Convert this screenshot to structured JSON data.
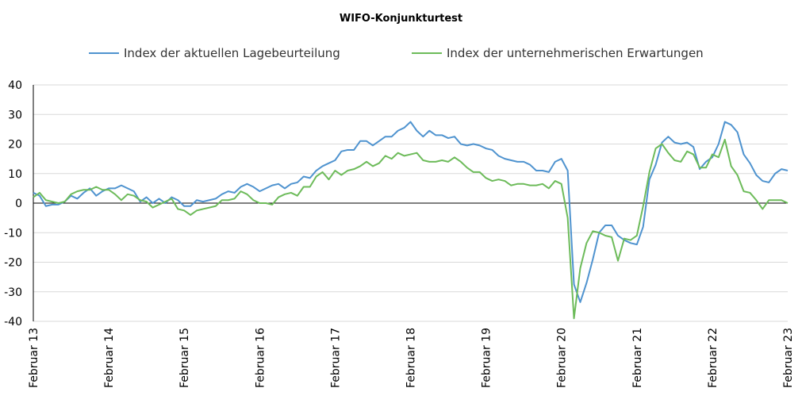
{
  "chart_data": {
    "type": "line",
    "title": "WIFO-Konjunkturtest",
    "xlabel": "",
    "ylabel": "",
    "ylim": [
      -40,
      40
    ],
    "yticks": [
      40,
      30,
      20,
      10,
      0,
      -10,
      -20,
      -30,
      -40
    ],
    "x_tick_labels": [
      "Februar 13",
      "Februar 14",
      "Februar 15",
      "Februar 16",
      "Februar 17",
      "Februar 18",
      "Februar 19",
      "Februar 20",
      "Februar 21",
      "Februar 22",
      "Februar 23"
    ],
    "grid": "horizontal",
    "legend_position": "top",
    "x_start": "2013-02",
    "x_end": "2023-02",
    "series": [
      {
        "name": "Index der aktuellen Lagebeurteilung",
        "color": "#4f93cf",
        "points": [
          [
            "2013-02",
            3.5
          ],
          [
            "2013-03",
            2.5
          ],
          [
            "2013-04",
            -1.0
          ],
          [
            "2013-05",
            -0.5
          ],
          [
            "2013-06",
            -0.5
          ],
          [
            "2013-07",
            0.5
          ],
          [
            "2013-08",
            2.5
          ],
          [
            "2013-09",
            1.5
          ],
          [
            "2013-10",
            3.5
          ],
          [
            "2013-11",
            5.0
          ],
          [
            "2013-12",
            2.5
          ],
          [
            "2014-01",
            4.0
          ],
          [
            "2014-02",
            5.0
          ],
          [
            "2014-03",
            5.0
          ],
          [
            "2014-04",
            6.0
          ],
          [
            "2014-05",
            5.0
          ],
          [
            "2014-06",
            4.0
          ],
          [
            "2014-07",
            0.5
          ],
          [
            "2014-08",
            2.0
          ],
          [
            "2014-09",
            0.0
          ],
          [
            "2014-10",
            1.5
          ],
          [
            "2014-11",
            0.0
          ],
          [
            "2014-12",
            2.0
          ],
          [
            "2015-01",
            1.0
          ],
          [
            "2015-02",
            -1.0
          ],
          [
            "2015-03",
            -1.0
          ],
          [
            "2015-04",
            1.0
          ],
          [
            "2015-05",
            0.5
          ],
          [
            "2015-06",
            1.0
          ],
          [
            "2015-07",
            1.5
          ],
          [
            "2015-08",
            3.0
          ],
          [
            "2015-09",
            4.0
          ],
          [
            "2015-10",
            3.5
          ],
          [
            "2015-11",
            5.5
          ],
          [
            "2015-12",
            6.5
          ],
          [
            "2016-01",
            5.5
          ],
          [
            "2016-02",
            4.0
          ],
          [
            "2016-03",
            5.0
          ],
          [
            "2016-04",
            6.0
          ],
          [
            "2016-05",
            6.5
          ],
          [
            "2016-06",
            5.0
          ],
          [
            "2016-07",
            6.5
          ],
          [
            "2016-08",
            7.0
          ],
          [
            "2016-09",
            9.0
          ],
          [
            "2016-10",
            8.5
          ],
          [
            "2016-11",
            11.0
          ],
          [
            "2016-12",
            12.5
          ],
          [
            "2017-01",
            13.5
          ],
          [
            "2017-02",
            14.5
          ],
          [
            "2017-03",
            17.5
          ],
          [
            "2017-04",
            18.0
          ],
          [
            "2017-05",
            18.0
          ],
          [
            "2017-06",
            21.0
          ],
          [
            "2017-07",
            21.0
          ],
          [
            "2017-08",
            19.5
          ],
          [
            "2017-09",
            21.0
          ],
          [
            "2017-10",
            22.5
          ],
          [
            "2017-11",
            22.5
          ],
          [
            "2017-12",
            24.5
          ],
          [
            "2018-01",
            25.5
          ],
          [
            "2018-02",
            27.5
          ],
          [
            "2018-03",
            24.5
          ],
          [
            "2018-04",
            22.5
          ],
          [
            "2018-05",
            24.5
          ],
          [
            "2018-06",
            23.0
          ],
          [
            "2018-07",
            23.0
          ],
          [
            "2018-08",
            22.0
          ],
          [
            "2018-09",
            22.5
          ],
          [
            "2018-10",
            20.0
          ],
          [
            "2018-11",
            19.5
          ],
          [
            "2018-12",
            20.0
          ],
          [
            "2019-01",
            19.5
          ],
          [
            "2019-02",
            18.5
          ],
          [
            "2019-03",
            18.0
          ],
          [
            "2019-04",
            16.0
          ],
          [
            "2019-05",
            15.0
          ],
          [
            "2019-06",
            14.5
          ],
          [
            "2019-07",
            14.0
          ],
          [
            "2019-08",
            14.0
          ],
          [
            "2019-09",
            13.0
          ],
          [
            "2019-10",
            11.0
          ],
          [
            "2019-11",
            11.0
          ],
          [
            "2019-12",
            10.5
          ],
          [
            "2020-01",
            14.0
          ],
          [
            "2020-02",
            15.0
          ],
          [
            "2020-03",
            11.0
          ],
          [
            "2020-04",
            -27.5
          ],
          [
            "2020-05",
            -33.5
          ],
          [
            "2020-06",
            -27.0
          ],
          [
            "2020-07",
            -19.0
          ],
          [
            "2020-08",
            -10.0
          ],
          [
            "2020-09",
            -7.5
          ],
          [
            "2020-10",
            -7.5
          ],
          [
            "2020-11",
            -11.0
          ],
          [
            "2020-12",
            -12.5
          ],
          [
            "2021-01",
            -13.5
          ],
          [
            "2021-02",
            -14.0
          ],
          [
            "2021-03",
            -8.0
          ],
          [
            "2021-04",
            8.0
          ],
          [
            "2021-05",
            13.0
          ],
          [
            "2021-06",
            20.5
          ],
          [
            "2021-07",
            22.5
          ],
          [
            "2021-08",
            20.5
          ],
          [
            "2021-09",
            20.0
          ],
          [
            "2021-10",
            20.5
          ],
          [
            "2021-11",
            19.0
          ],
          [
            "2021-12",
            11.5
          ],
          [
            "2022-01",
            14.0
          ],
          [
            "2022-02",
            15.5
          ],
          [
            "2022-03",
            20.0
          ],
          [
            "2022-04",
            27.5
          ],
          [
            "2022-05",
            26.5
          ],
          [
            "2022-06",
            24.0
          ],
          [
            "2022-07",
            16.5
          ],
          [
            "2022-08",
            13.5
          ],
          [
            "2022-09",
            9.5
          ],
          [
            "2022-10",
            7.5
          ],
          [
            "2022-11",
            7.0
          ],
          [
            "2022-12",
            10.0
          ],
          [
            "2023-01",
            11.5
          ],
          [
            "2023-02",
            11.0
          ]
        ]
      },
      {
        "name": "Index der unternehmerischen Erwartungen",
        "color": "#6dbb5a",
        "points": [
          [
            "2013-02",
            2.0
          ],
          [
            "2013-03",
            3.5
          ],
          [
            "2013-04",
            1.0
          ],
          [
            "2013-05",
            0.5
          ],
          [
            "2013-06",
            0.0
          ],
          [
            "2013-07",
            0.5
          ],
          [
            "2013-08",
            3.0
          ],
          [
            "2013-09",
            4.0
          ],
          [
            "2013-10",
            4.5
          ],
          [
            "2013-11",
            4.5
          ],
          [
            "2013-12",
            5.5
          ],
          [
            "2014-01",
            4.5
          ],
          [
            "2014-02",
            4.5
          ],
          [
            "2014-03",
            3.0
          ],
          [
            "2014-04",
            1.0
          ],
          [
            "2014-05",
            3.0
          ],
          [
            "2014-06",
            2.5
          ],
          [
            "2014-07",
            1.0
          ],
          [
            "2014-08",
            0.5
          ],
          [
            "2014-09",
            -1.5
          ],
          [
            "2014-10",
            -0.5
          ],
          [
            "2014-11",
            0.5
          ],
          [
            "2014-12",
            1.5
          ],
          [
            "2015-01",
            -2.0
          ],
          [
            "2015-02",
            -2.5
          ],
          [
            "2015-03",
            -4.0
          ],
          [
            "2015-04",
            -2.5
          ],
          [
            "2015-05",
            -2.0
          ],
          [
            "2015-06",
            -1.5
          ],
          [
            "2015-07",
            -1.0
          ],
          [
            "2015-08",
            1.0
          ],
          [
            "2015-09",
            1.0
          ],
          [
            "2015-10",
            1.5
          ],
          [
            "2015-11",
            4.0
          ],
          [
            "2015-12",
            3.0
          ],
          [
            "2016-01",
            1.0
          ],
          [
            "2016-02",
            0.0
          ],
          [
            "2016-03",
            0.0
          ],
          [
            "2016-04",
            -0.5
          ],
          [
            "2016-05",
            2.0
          ],
          [
            "2016-06",
            3.0
          ],
          [
            "2016-07",
            3.5
          ],
          [
            "2016-08",
            2.5
          ],
          [
            "2016-09",
            5.5
          ],
          [
            "2016-10",
            5.5
          ],
          [
            "2016-11",
            9.0
          ],
          [
            "2016-12",
            10.5
          ],
          [
            "2017-01",
            8.0
          ],
          [
            "2017-02",
            11.0
          ],
          [
            "2017-03",
            9.5
          ],
          [
            "2017-04",
            11.0
          ],
          [
            "2017-05",
            11.5
          ],
          [
            "2017-06",
            12.5
          ],
          [
            "2017-07",
            14.0
          ],
          [
            "2017-08",
            12.5
          ],
          [
            "2017-09",
            13.5
          ],
          [
            "2017-10",
            16.0
          ],
          [
            "2017-11",
            15.0
          ],
          [
            "2017-12",
            17.0
          ],
          [
            "2018-01",
            16.0
          ],
          [
            "2018-02",
            16.5
          ],
          [
            "2018-03",
            17.0
          ],
          [
            "2018-04",
            14.5
          ],
          [
            "2018-05",
            14.0
          ],
          [
            "2018-06",
            14.0
          ],
          [
            "2018-07",
            14.5
          ],
          [
            "2018-08",
            14.0
          ],
          [
            "2018-09",
            15.5
          ],
          [
            "2018-10",
            14.0
          ],
          [
            "2018-11",
            12.0
          ],
          [
            "2018-12",
            10.5
          ],
          [
            "2019-01",
            10.5
          ],
          [
            "2019-02",
            8.5
          ],
          [
            "2019-03",
            7.5
          ],
          [
            "2019-04",
            8.0
          ],
          [
            "2019-05",
            7.5
          ],
          [
            "2019-06",
            6.0
          ],
          [
            "2019-07",
            6.5
          ],
          [
            "2019-08",
            6.5
          ],
          [
            "2019-09",
            6.0
          ],
          [
            "2019-10",
            6.0
          ],
          [
            "2019-11",
            6.5
          ],
          [
            "2019-12",
            5.0
          ],
          [
            "2020-01",
            7.5
          ],
          [
            "2020-02",
            6.5
          ],
          [
            "2020-03",
            -5.0
          ],
          [
            "2020-04",
            -39.0
          ],
          [
            "2020-05",
            -22.0
          ],
          [
            "2020-06",
            -13.5
          ],
          [
            "2020-07",
            -9.5
          ],
          [
            "2020-08",
            -10.0
          ],
          [
            "2020-09",
            -11.0
          ],
          [
            "2020-10",
            -11.5
          ],
          [
            "2020-11",
            -19.5
          ],
          [
            "2020-12",
            -12.0
          ],
          [
            "2021-01",
            -12.5
          ],
          [
            "2021-02",
            -11.0
          ],
          [
            "2021-03",
            -1.0
          ],
          [
            "2021-04",
            10.5
          ],
          [
            "2021-05",
            18.5
          ],
          [
            "2021-06",
            20.0
          ],
          [
            "2021-07",
            17.0
          ],
          [
            "2021-08",
            14.5
          ],
          [
            "2021-09",
            14.0
          ],
          [
            "2021-10",
            17.5
          ],
          [
            "2021-11",
            16.5
          ],
          [
            "2021-12",
            12.0
          ],
          [
            "2022-01",
            12.0
          ],
          [
            "2022-02",
            16.5
          ],
          [
            "2022-03",
            15.5
          ],
          [
            "2022-04",
            21.5
          ],
          [
            "2022-05",
            12.5
          ],
          [
            "2022-06",
            9.5
          ],
          [
            "2022-07",
            4.0
          ],
          [
            "2022-08",
            3.5
          ],
          [
            "2022-09",
            1.0
          ],
          [
            "2022-10",
            -2.0
          ],
          [
            "2022-11",
            1.0
          ],
          [
            "2022-12",
            1.0
          ],
          [
            "2023-01",
            1.0
          ],
          [
            "2023-02",
            0.0
          ]
        ]
      }
    ]
  }
}
